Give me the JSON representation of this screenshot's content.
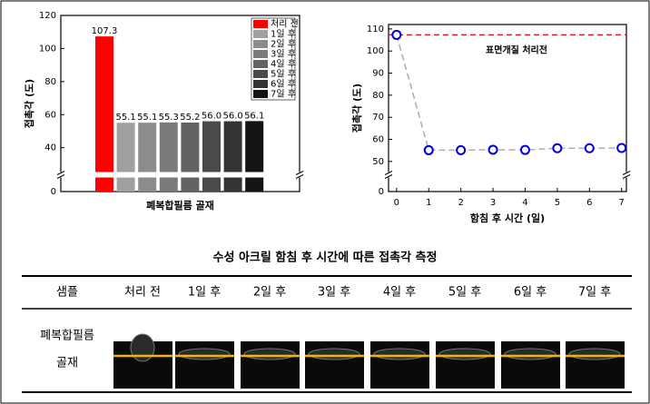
{
  "chart_data": [
    {
      "type": "bar",
      "ylabel": "접촉각 (도)",
      "xlabel": "폐복합필름 골재",
      "categories": [
        "처리 전",
        "1일 후",
        "2일 후",
        "3일 후",
        "4일 후",
        "5일 후",
        "6일 후",
        "7일 후"
      ],
      "values": [
        107.3,
        55.1,
        55.1,
        55.3,
        55.2,
        56.0,
        56.0,
        56.1
      ],
      "value_labels": [
        "107.3",
        "55.1",
        "55.1",
        "55.3",
        "55.2",
        "56.0",
        "56.0",
        "56.1"
      ],
      "colors": [
        "#ff0000",
        "#a0a0a0",
        "#8c8c8c",
        "#7a7a7a",
        "#636363",
        "#4a4a4a",
        "#333333",
        "#141414"
      ],
      "ylim": [
        0,
        120
      ],
      "yticks": [
        0,
        40,
        60,
        80,
        100,
        120
      ],
      "ybreak": [
        5,
        25
      ],
      "legend": "top-right"
    },
    {
      "type": "line",
      "ylabel": "접촉각 (도)",
      "xlabel": "함침 후 시간 (일)",
      "x": [
        0,
        1,
        2,
        3,
        4,
        5,
        6,
        7
      ],
      "values": [
        107.3,
        55.1,
        55.1,
        55.3,
        55.2,
        56.0,
        56.0,
        56.1
      ],
      "marker_color": "#0000dd",
      "line_color": "#b0a8b8",
      "xlim": [
        -0.25,
        7.15
      ],
      "xticks": [
        0,
        1,
        2,
        3,
        4,
        5,
        6,
        7
      ],
      "ylim": [
        0,
        112
      ],
      "yticks": [
        0,
        50,
        60,
        70,
        80,
        90,
        100,
        110
      ],
      "ybreak": [
        5,
        45
      ],
      "reference_line": {
        "value": 107.3,
        "label": "표면개질 처리전",
        "color": "#e02020"
      }
    }
  ],
  "table": {
    "title": "수성 아크릴 함침 후 시간에 따른 접촉각 측정",
    "header": [
      "샘플",
      "처리 전",
      "1일 후",
      "2일 후",
      "3일 후",
      "4일 후",
      "5일 후",
      "6일 후",
      "7일 후"
    ],
    "row_label": [
      "폐복합필름",
      "골재"
    ]
  }
}
